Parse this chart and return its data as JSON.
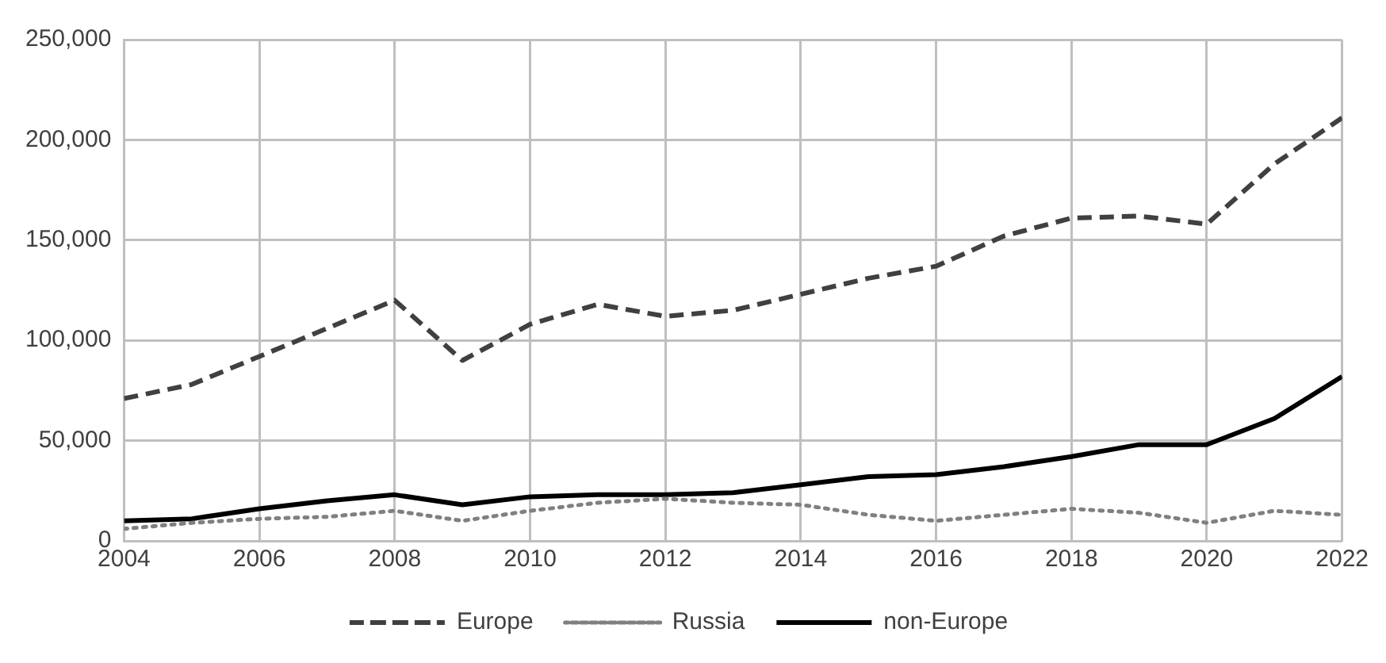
{
  "chart_data": {
    "type": "line",
    "x": [
      2004,
      2005,
      2006,
      2007,
      2008,
      2009,
      2010,
      2011,
      2012,
      2013,
      2014,
      2015,
      2016,
      2017,
      2018,
      2019,
      2020,
      2021,
      2022
    ],
    "series": [
      {
        "name": "Europe",
        "color": "#404040",
        "line_style": "dashed",
        "values": [
          71000,
          78000,
          92000,
          106000,
          120000,
          90000,
          108000,
          118000,
          112000,
          115000,
          123000,
          131000,
          137000,
          152000,
          161000,
          162000,
          158000,
          188000,
          211000
        ]
      },
      {
        "name": "Russia",
        "color": "#808080",
        "line_style": "dotted",
        "values": [
          6000,
          9000,
          11000,
          12000,
          15000,
          10000,
          15000,
          19000,
          21000,
          19000,
          18000,
          13000,
          10000,
          13000,
          16000,
          14000,
          9000,
          15000,
          13000
        ]
      },
      {
        "name": "non-Europe",
        "color": "#000000",
        "line_style": "solid",
        "values": [
          10000,
          11000,
          16000,
          20000,
          23000,
          18000,
          22000,
          23000,
          23000,
          24000,
          28000,
          32000,
          33000,
          37000,
          42000,
          48000,
          48000,
          61000,
          82000
        ]
      }
    ],
    "xlim": [
      2004,
      2022
    ],
    "xticks": [
      2004,
      2006,
      2008,
      2010,
      2012,
      2014,
      2016,
      2018,
      2020,
      2022
    ],
    "ylim": [
      0,
      250000
    ],
    "yticks": [
      0,
      {
        "value": 50000,
        "label": "50,000"
      },
      {
        "value": 100000,
        "label": "100,000"
      },
      {
        "value": 150000,
        "label": "150,000"
      },
      {
        "value": 200000,
        "label": "200,000"
      },
      {
        "value": 250000,
        "label": "250,000"
      }
    ],
    "grid": true,
    "legend": "bottom",
    "marker": "none"
  }
}
